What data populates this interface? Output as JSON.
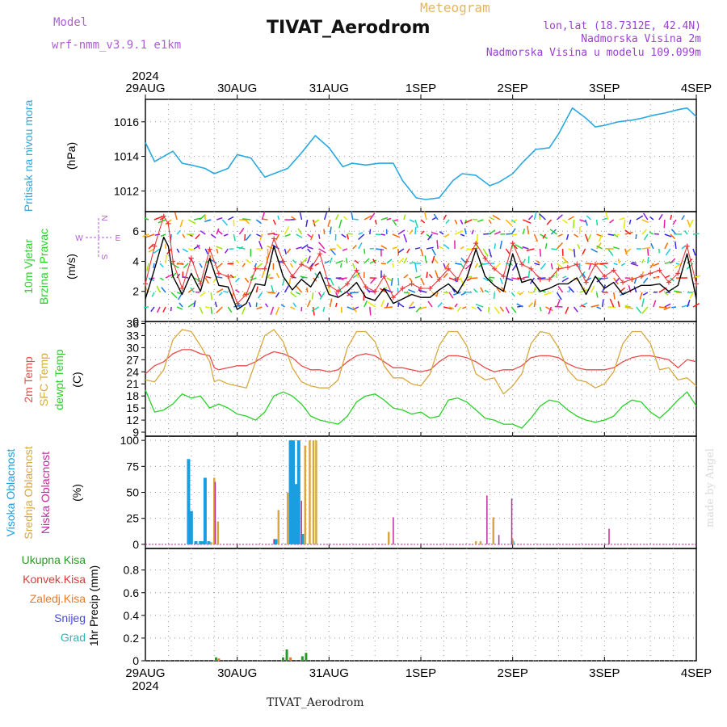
{
  "header": {
    "model_label": "Model",
    "model_name": "wrf-nmm_v3.9.1  e1km",
    "title": "TIVAT_Aerodrom",
    "meteogram_label": "Meteogram",
    "lonlat": "lon,lat (18.7312E, 42.4N)",
    "elevation": "Nadmorska Visina 2m",
    "model_elevation": "Nadmorska Visina u modelu 109.099m"
  },
  "footer": {
    "station": "TIVAT_Aerodrom",
    "watermark": "made by Angel"
  },
  "colors": {
    "pressure": "#2aa8e0",
    "wind_speed": "#000000",
    "gust": "#e83a3a",
    "t2m": "#e84a4a",
    "sfc": "#d8a840",
    "dew": "#2ad12a",
    "cloud_high": "#1a9ee0",
    "cloud_mid": "#d8a840",
    "cloud_low": "#c02aa0",
    "precip_total": "#2a9a2a",
    "precip_conv": "#d83a3a",
    "precip_frozen": "#e87a2a",
    "snow": "#4a4ad8",
    "graupel": "#2ab8b0"
  },
  "time_axis": {
    "year": "2024",
    "tick_labels": [
      "29AUG",
      "30AUG",
      "31AUG",
      "1SEP",
      "2SEP",
      "3SEP",
      "4SEP"
    ],
    "days": 6
  },
  "chart_data": [
    {
      "type": "line",
      "panel": "pressure",
      "ylabel_1": "Pritisak na nivou mora",
      "ylabel_2": "(hPa)",
      "ylim": [
        1010.8,
        1017.3
      ],
      "yticks": [
        "1012",
        "1014",
        "1016"
      ],
      "ytick_values": [
        1012,
        1014,
        1016
      ],
      "x": [
        0,
        0.1,
        0.2,
        0.3,
        0.4,
        0.5,
        0.65,
        0.75,
        0.9,
        1.0,
        1.15,
        1.3,
        1.45,
        1.55,
        1.7,
        1.85,
        2.0,
        2.15,
        2.25,
        2.4,
        2.55,
        2.7,
        2.8,
        2.95,
        3.05,
        3.2,
        3.35,
        3.45,
        3.6,
        3.75,
        3.85,
        4.0,
        4.1,
        4.25,
        4.4,
        4.5,
        4.65,
        4.8,
        4.9,
        5.0,
        5.15,
        5.3,
        5.4,
        5.55,
        5.65,
        5.8,
        5.9,
        6.0
      ],
      "values": [
        1014.8,
        1013.7,
        1014.0,
        1014.3,
        1013.6,
        1013.5,
        1013.3,
        1013.0,
        1013.3,
        1014.1,
        1013.9,
        1012.8,
        1013.1,
        1013.3,
        1014.2,
        1015.2,
        1014.5,
        1013.4,
        1013.6,
        1013.5,
        1013.6,
        1013.6,
        1012.6,
        1011.6,
        1011.5,
        1011.6,
        1012.6,
        1013.0,
        1012.9,
        1012.3,
        1012.5,
        1013.0,
        1013.6,
        1014.4,
        1014.5,
        1015.3,
        1016.8,
        1016.2,
        1015.7,
        1015.8,
        1016.0,
        1016.1,
        1016.2,
        1016.4,
        1016.5,
        1016.7,
        1016.8,
        1016.3
      ]
    },
    {
      "type": "line",
      "panel": "wind",
      "ylabel_1": "10m Vjetar",
      "ylabel_2": "Brzina i Pravac",
      "ylabel_3": "(m/s)",
      "compass": {
        "n": "N",
        "s": "S",
        "e": "E",
        "w": "W"
      },
      "ylim": [
        0,
        7.3
      ],
      "yticks": [
        "0",
        "2",
        "4",
        "6"
      ],
      "ytick_values": [
        0,
        2,
        4,
        6
      ],
      "series": [
        {
          "name": "speed",
          "x": [
            0,
            0.1,
            0.2,
            0.25,
            0.3,
            0.4,
            0.5,
            0.6,
            0.7,
            0.8,
            0.9,
            1.0,
            1.1,
            1.2,
            1.3,
            1.4,
            1.5,
            1.6,
            1.7,
            1.8,
            1.9,
            2.0,
            2.1,
            2.2,
            2.3,
            2.4,
            2.5,
            2.6,
            2.7,
            2.8,
            2.9,
            3.0,
            3.1,
            3.2,
            3.3,
            3.4,
            3.5,
            3.6,
            3.7,
            3.8,
            3.9,
            4.0,
            4.1,
            4.2,
            4.3,
            4.4,
            4.5,
            4.6,
            4.7,
            4.8,
            4.9,
            5.0,
            5.1,
            5.2,
            5.3,
            5.4,
            5.5,
            5.6,
            5.7,
            5.8,
            5.9,
            6.0
          ],
          "values": [
            1.5,
            3.5,
            5.6,
            5.0,
            3.0,
            1.8,
            3.2,
            2.0,
            4.2,
            2.4,
            2.3,
            0.8,
            1.2,
            2.5,
            2.4,
            5.0,
            3.0,
            2.1,
            2.8,
            2.3,
            3.3,
            1.8,
            1.6,
            2.0,
            2.6,
            1.6,
            1.4,
            2.2,
            1.2,
            1.5,
            1.8,
            1.6,
            1.6,
            2.1,
            2.5,
            1.9,
            2.9,
            4.8,
            3.0,
            2.4,
            2.0,
            4.5,
            2.6,
            2.8,
            2.0,
            2.2,
            2.5,
            2.5,
            2.9,
            1.8,
            3.0,
            2.2,
            2.6,
            1.8,
            2.1,
            2.4,
            2.4,
            2.5,
            2.0,
            2.4,
            4.5,
            1.5
          ]
        },
        {
          "name": "gust",
          "x": [
            0,
            0.1,
            0.2,
            0.25,
            0.3,
            0.4,
            0.5,
            0.6,
            0.7,
            0.8,
            0.9,
            1.0,
            1.1,
            1.2,
            1.3,
            1.4,
            1.5,
            1.6,
            1.7,
            1.8,
            1.9,
            2.0,
            2.1,
            2.2,
            2.3,
            2.4,
            2.5,
            2.6,
            2.7,
            2.8,
            2.9,
            3.0,
            3.1,
            3.2,
            3.3,
            3.4,
            3.5,
            3.6,
            3.7,
            3.8,
            3.9,
            4.0,
            4.1,
            4.2,
            4.3,
            4.4,
            4.5,
            4.6,
            4.7,
            4.8,
            4.9,
            5.0,
            5.1,
            5.2,
            5.3,
            5.4,
            5.5,
            5.6,
            5.7,
            5.8,
            5.9,
            6.0
          ],
          "values": [
            2.5,
            5.0,
            7.0,
            6.5,
            4.0,
            2.2,
            4.2,
            2.5,
            4.8,
            3.2,
            3.0,
            1.2,
            1.8,
            3.5,
            3.5,
            5.5,
            4.0,
            3.0,
            3.8,
            3.5,
            4.5,
            2.4,
            2.0,
            2.5,
            3.4,
            2.3,
            2.0,
            3.0,
            1.6,
            2.2,
            2.5,
            2.2,
            2.2,
            2.8,
            3.5,
            2.8,
            4.0,
            5.2,
            4.2,
            3.5,
            3.0,
            5.2,
            3.8,
            3.5,
            2.8,
            2.8,
            3.5,
            3.6,
            3.8,
            2.6,
            3.8,
            3.0,
            3.4,
            2.6,
            2.8,
            3.0,
            3.2,
            3.4,
            2.6,
            3.2,
            5.0,
            2.5
          ]
        }
      ]
    },
    {
      "type": "line",
      "panel": "temperature",
      "ylabel_1": "2m Temp",
      "ylabel_2": "SFC Temp",
      "ylabel_3": "dewpt Temp",
      "ylabel_4": "(C)",
      "ylim": [
        8,
        36.5
      ],
      "yticks": [
        "9",
        "12",
        "15",
        "18",
        "21",
        "24",
        "27",
        "30",
        "33",
        "36"
      ],
      "ytick_values": [
        9,
        12,
        15,
        18,
        21,
        24,
        27,
        30,
        33,
        36
      ],
      "series": [
        {
          "name": "2m Temp",
          "x": [
            0,
            0.1,
            0.2,
            0.3,
            0.4,
            0.5,
            0.6,
            0.7,
            0.75,
            0.8,
            0.9,
            1.0,
            1.1,
            1.2,
            1.3,
            1.4,
            1.5,
            1.6,
            1.7,
            1.8,
            1.9,
            2.0,
            2.1,
            2.2,
            2.3,
            2.4,
            2.5,
            2.6,
            2.7,
            2.8,
            2.9,
            3.0,
            3.1,
            3.2,
            3.3,
            3.4,
            3.5,
            3.6,
            3.7,
            3.8,
            3.9,
            4.0,
            4.1,
            4.2,
            4.3,
            4.4,
            4.5,
            4.6,
            4.7,
            4.8,
            4.9,
            5.0,
            5.1,
            5.2,
            5.3,
            5.4,
            5.5,
            5.6,
            5.7,
            5.8,
            5.9,
            6.0
          ],
          "values": [
            23.5,
            25.5,
            26.5,
            28.5,
            29.5,
            29.5,
            28.5,
            28.0,
            25.0,
            24.5,
            25.0,
            25.5,
            25.5,
            26.5,
            28.0,
            29.0,
            28.5,
            27.5,
            25.5,
            24.5,
            24.5,
            24.0,
            24.5,
            26.5,
            28.0,
            28.5,
            28.0,
            26.5,
            25.0,
            25.0,
            24.5,
            24.0,
            24.5,
            26.5,
            28.0,
            28.0,
            27.5,
            26.5,
            25.0,
            24.0,
            24.5,
            24.5,
            25.5,
            27.5,
            28.0,
            28.0,
            27.5,
            26.0,
            25.0,
            24.5,
            24.5,
            24.5,
            25.0,
            26.5,
            27.5,
            28.0,
            28.0,
            27.5,
            27.0,
            25.0,
            27.0,
            26.5
          ]
        },
        {
          "name": "SFC Temp",
          "x": [
            0,
            0.1,
            0.2,
            0.3,
            0.4,
            0.5,
            0.6,
            0.7,
            0.75,
            0.8,
            0.9,
            1.0,
            1.1,
            1.2,
            1.3,
            1.4,
            1.5,
            1.6,
            1.7,
            1.8,
            1.9,
            2.0,
            2.1,
            2.2,
            2.3,
            2.4,
            2.5,
            2.6,
            2.7,
            2.8,
            2.9,
            3.0,
            3.1,
            3.2,
            3.3,
            3.4,
            3.5,
            3.6,
            3.7,
            3.8,
            3.9,
            4.0,
            4.1,
            4.2,
            4.3,
            4.4,
            4.5,
            4.6,
            4.7,
            4.8,
            4.9,
            5.0,
            5.1,
            5.2,
            5.3,
            5.4,
            5.5,
            5.6,
            5.7,
            5.8,
            5.9,
            6.0
          ],
          "values": [
            22.0,
            21.5,
            24.5,
            32.0,
            34.5,
            34.0,
            30.5,
            26.5,
            21.5,
            22.0,
            21.0,
            20.5,
            20.0,
            26.5,
            33.0,
            34.5,
            31.5,
            25.0,
            21.5,
            20.5,
            20.0,
            20.0,
            22.0,
            30.0,
            34.0,
            34.0,
            31.5,
            25.5,
            22.5,
            22.5,
            21.0,
            20.5,
            23.5,
            30.5,
            34.0,
            34.0,
            30.5,
            23.5,
            22.0,
            22.5,
            18.5,
            20.5,
            23.5,
            31.0,
            34.0,
            33.5,
            30.0,
            24.5,
            22.0,
            21.5,
            20.0,
            21.0,
            24.0,
            31.0,
            34.0,
            34.0,
            31.0,
            24.5,
            25.0,
            22.0,
            22.5,
            20.5
          ]
        },
        {
          "name": "dewpt Temp",
          "x": [
            0,
            0.1,
            0.2,
            0.3,
            0.4,
            0.5,
            0.6,
            0.7,
            0.8,
            0.9,
            1.0,
            1.1,
            1.2,
            1.3,
            1.4,
            1.5,
            1.6,
            1.7,
            1.8,
            1.9,
            2.0,
            2.1,
            2.2,
            2.3,
            2.4,
            2.5,
            2.6,
            2.7,
            2.8,
            2.9,
            3.0,
            3.1,
            3.2,
            3.3,
            3.4,
            3.5,
            3.6,
            3.7,
            3.8,
            3.9,
            4.0,
            4.1,
            4.2,
            4.3,
            4.4,
            4.5,
            4.6,
            4.7,
            4.8,
            4.9,
            5.0,
            5.1,
            5.2,
            5.3,
            5.4,
            5.5,
            5.6,
            5.7,
            5.8,
            5.9,
            6.0
          ],
          "values": [
            19.5,
            14.0,
            14.5,
            16.0,
            18.5,
            17.5,
            18.0,
            15.0,
            16.0,
            15.0,
            13.5,
            13.0,
            12.0,
            14.0,
            18.0,
            19.0,
            18.0,
            16.0,
            13.0,
            12.0,
            11.5,
            11.0,
            13.0,
            16.5,
            18.0,
            18.5,
            17.0,
            15.0,
            14.5,
            13.5,
            14.0,
            12.5,
            13.0,
            17.0,
            17.5,
            16.5,
            14.5,
            12.5,
            12.0,
            11.0,
            11.0,
            10.0,
            12.5,
            15.5,
            17.0,
            16.5,
            14.5,
            13.0,
            12.0,
            11.5,
            12.0,
            13.0,
            15.5,
            17.0,
            16.5,
            14.0,
            12.5,
            14.5,
            17.0,
            19.0,
            15.5
          ]
        }
      ]
    },
    {
      "type": "bar",
      "panel": "cloud",
      "ylabel_1": "Visoka Oblacnost",
      "ylabel_2": "Srednja Oblacnost",
      "ylabel_3": "Niska Oblacnost",
      "ylabel_4": "(%)",
      "ylim": [
        -4,
        104
      ],
      "yticks": [
        "0",
        "25",
        "50",
        "75",
        "100"
      ],
      "ytick_values": [
        0,
        25,
        50,
        75,
        100
      ],
      "series": [
        {
          "name": "Visoka Oblacnost",
          "x": [
            0.47,
            0.5,
            0.55,
            0.6,
            0.63,
            0.65,
            0.69,
            1.42,
            1.58,
            1.61,
            1.64,
            1.67,
            1.71,
            4.0
          ],
          "values": [
            82,
            32,
            3,
            3,
            3,
            64,
            3,
            5,
            100,
            100,
            58,
            100,
            10,
            3
          ]
        },
        {
          "name": "Srednja Oblacnost",
          "x": [
            0.72,
            0.75,
            0.79,
            1.45,
            1.55,
            1.74,
            1.79,
            1.83,
            1.86,
            2.65,
            3.6,
            3.65,
            3.79,
            4.0
          ],
          "values": [
            2,
            64,
            22,
            33,
            50,
            95,
            100,
            100,
            100,
            12,
            3,
            3,
            26,
            5
          ]
        },
        {
          "name": "Niska Oblacnost",
          "x": [
            0.76,
            1.4,
            1.7,
            2.7,
            3.72,
            3.85,
            3.99,
            5.05
          ],
          "values": [
            60,
            5,
            42,
            26,
            47,
            9,
            44,
            15
          ]
        }
      ]
    },
    {
      "type": "bar",
      "panel": "precip",
      "ylabel_1": "1hr Precip (mm)",
      "legend": [
        "Ukupna Kisa",
        "Konvek.Kisa",
        "Zaledj.Kisa",
        "Snijeg",
        "Grad"
      ],
      "ylim": [
        0,
        0.99
      ],
      "yticks": [
        "0",
        "0.2",
        "0.4",
        "0.6",
        "0.8"
      ],
      "ytick_values": [
        0,
        0.2,
        0.4,
        0.6,
        0.8
      ],
      "series": [
        {
          "name": "Ukupna Kisa",
          "x": [
            0.77,
            1.5,
            1.54,
            1.71,
            1.75
          ],
          "values": [
            0.03,
            0.03,
            0.1,
            0.04,
            0.07
          ]
        },
        {
          "name": "Zaledj.Kisa",
          "x": [
            0.8,
            1.58
          ],
          "values": [
            0.02,
            0.03
          ]
        }
      ]
    }
  ]
}
